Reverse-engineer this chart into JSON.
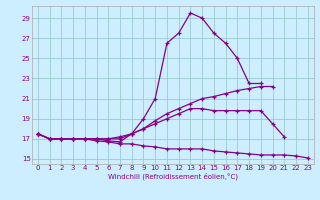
{
  "xlabel": "Windchill (Refroidissement éolien,°C)",
  "xlim": [
    -0.5,
    23.5
  ],
  "ylim": [
    14.5,
    30.2
  ],
  "yticks": [
    15,
    17,
    19,
    21,
    23,
    25,
    27,
    29
  ],
  "xticks": [
    0,
    1,
    2,
    3,
    4,
    5,
    6,
    7,
    8,
    9,
    10,
    11,
    12,
    13,
    14,
    15,
    16,
    17,
    18,
    19,
    20,
    21,
    22,
    23
  ],
  "bg_color": "#cceeff",
  "line_color": "#880088",
  "grid_color": "#99cccc",
  "lines": [
    {
      "x": [
        0,
        1,
        2,
        3,
        4,
        5,
        6,
        7,
        8,
        9,
        10,
        11,
        12,
        13,
        14,
        15,
        16,
        17,
        18,
        19
      ],
      "y": [
        17.5,
        17.0,
        17.0,
        17.0,
        17.0,
        17.0,
        16.8,
        16.7,
        17.5,
        19.0,
        21.0,
        26.5,
        27.5,
        29.5,
        29.0,
        27.5,
        26.5,
        25.0,
        22.5,
        22.5
      ]
    },
    {
      "x": [
        0,
        1,
        2,
        3,
        4,
        5,
        6,
        7,
        8,
        9,
        10,
        11,
        12,
        13,
        14,
        15,
        16,
        17,
        18,
        19,
        20
      ],
      "y": [
        17.5,
        17.0,
        17.0,
        17.0,
        17.0,
        17.0,
        17.0,
        17.2,
        17.5,
        18.0,
        18.8,
        19.5,
        20.0,
        20.5,
        21.0,
        21.2,
        21.5,
        21.8,
        22.0,
        22.2,
        22.2
      ]
    },
    {
      "x": [
        0,
        1,
        2,
        3,
        4,
        5,
        6,
        7,
        8,
        9,
        10,
        11,
        12,
        13,
        14,
        15,
        16,
        17,
        18,
        19,
        20,
        21
      ],
      "y": [
        17.5,
        17.0,
        17.0,
        17.0,
        17.0,
        17.0,
        17.0,
        17.0,
        17.5,
        18.0,
        18.5,
        19.0,
        19.5,
        20.0,
        20.0,
        19.8,
        19.8,
        19.8,
        19.8,
        19.8,
        18.5,
        17.2
      ]
    },
    {
      "x": [
        0,
        1,
        2,
        3,
        4,
        5,
        6,
        7,
        8,
        9,
        10,
        11,
        12,
        13,
        14,
        15,
        16,
        17,
        18,
        19,
        20,
        21,
        22,
        23
      ],
      "y": [
        17.5,
        17.0,
        17.0,
        17.0,
        17.0,
        16.8,
        16.7,
        16.5,
        16.5,
        16.3,
        16.2,
        16.0,
        16.0,
        16.0,
        16.0,
        15.8,
        15.7,
        15.6,
        15.5,
        15.4,
        15.4,
        15.4,
        15.3,
        15.1
      ]
    }
  ]
}
